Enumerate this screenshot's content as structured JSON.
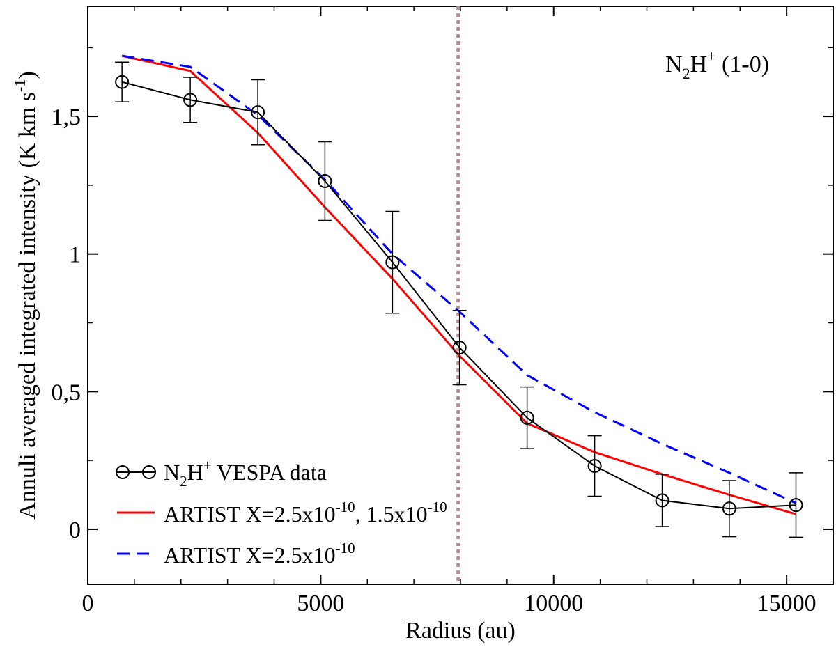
{
  "chart_data": {
    "type": "line",
    "title": "",
    "annotation": {
      "base": "N",
      "sub": "2",
      "base2": "H",
      "sup": "+",
      "tail": " (1-0)"
    },
    "xlabel": "Radius (au)",
    "ylabel": {
      "text": "Annuli averaged integrated intensity (K km s",
      "sup": "-1",
      "close": ")"
    },
    "xlim": [
      0,
      16000
    ],
    "ylim": [
      -0.2,
      1.9
    ],
    "xticks": [
      0,
      5000,
      10000,
      15000
    ],
    "xtick_labels": [
      "0",
      "5000",
      "10000",
      "15000"
    ],
    "yticks": [
      0,
      0.5,
      1,
      1.5
    ],
    "ytick_labels": [
      "0",
      "0,5",
      "1",
      "1,5"
    ],
    "vline_x": 7950,
    "series": [
      {
        "name": "N2H+ VESPA data",
        "legend": {
          "base": "N",
          "sub": "2",
          "base2": "H",
          "sup": "+",
          "tail": " VESPA data"
        },
        "color": "#000000",
        "style": "solid-markers",
        "x": [
          735,
          2200,
          3650,
          5090,
          6540,
          7980,
          9430,
          10880,
          12330,
          13770,
          15200
        ],
        "y": [
          1.625,
          1.56,
          1.515,
          1.265,
          0.97,
          0.66,
          0.405,
          0.23,
          0.105,
          0.075,
          0.088
        ],
        "err": [
          0.072,
          0.082,
          0.118,
          0.143,
          0.185,
          0.135,
          0.112,
          0.11,
          0.095,
          0.102,
          0.117
        ]
      },
      {
        "name": "ARTIST X=2.5x10^-10, 1.5x10^-10",
        "legend": {
          "base": "ARTIST X=2.5x10",
          "sup": "-10",
          "mid": ", 1.5x10",
          "sup2": "-10"
        },
        "color": "#ff0000",
        "style": "solid",
        "x": [
          735,
          2200,
          3650,
          5090,
          6540,
          7980,
          9430,
          10880,
          12330,
          13770,
          15200
        ],
        "y": [
          1.72,
          1.665,
          1.44,
          1.17,
          0.91,
          0.63,
          0.385,
          0.28,
          0.2,
          0.125,
          0.055
        ]
      },
      {
        "name": "ARTIST X=2.5x10^-10",
        "legend": {
          "base": "ARTIST X=2.5x10",
          "sup": "-10"
        },
        "color": "#0000ff",
        "style": "dashed",
        "x": [
          735,
          2200,
          3650,
          5090,
          6540,
          7980,
          9430,
          10880,
          12330,
          13770,
          15200
        ],
        "y": [
          1.72,
          1.68,
          1.505,
          1.27,
          1.0,
          0.79,
          0.56,
          0.425,
          0.31,
          0.205,
          0.095
        ]
      }
    ],
    "vline_color": "#bc8f8f"
  }
}
